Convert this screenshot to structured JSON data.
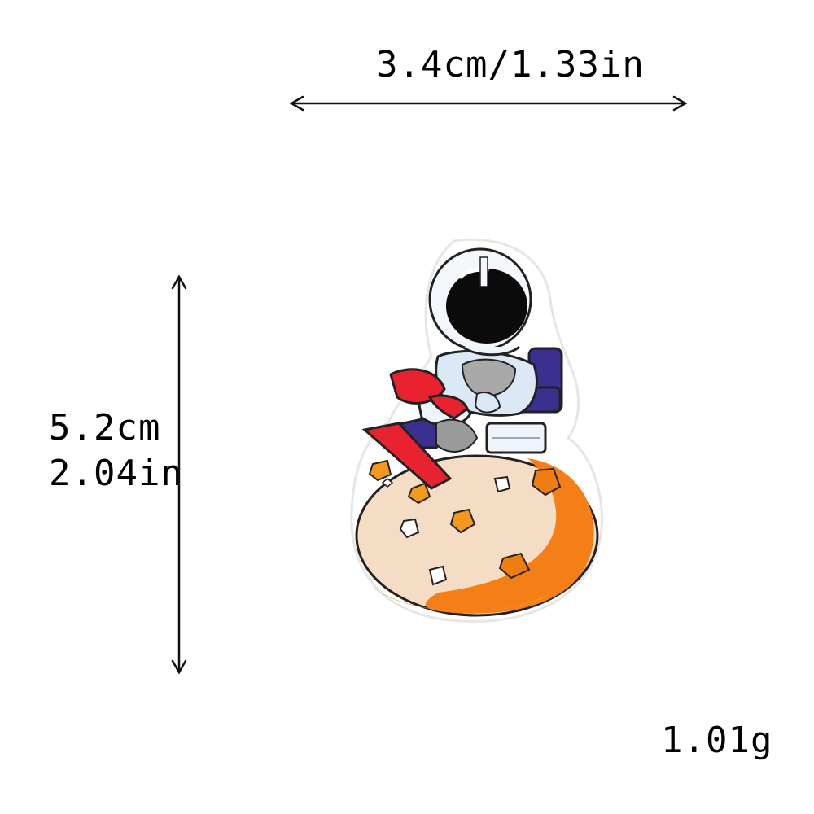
{
  "dimensions": {
    "width": "3.4cm/1.33in",
    "height_cm": "5.2cm",
    "height_in": "2.04in",
    "weight": "1.01g"
  },
  "product": {
    "image_icon": "astronaut-on-moon-patch-icon"
  },
  "colors": {
    "helmet_white": "#f4f7fb",
    "visor": "#0b0b0b",
    "suit_blue": "#3b2f8f",
    "boot_red": "#e8232f",
    "moon_cream": "#f5dcc4",
    "moon_orange": "#f57f17",
    "crater_orange": "#f39a1e",
    "gray": "#9a9a9a"
  }
}
